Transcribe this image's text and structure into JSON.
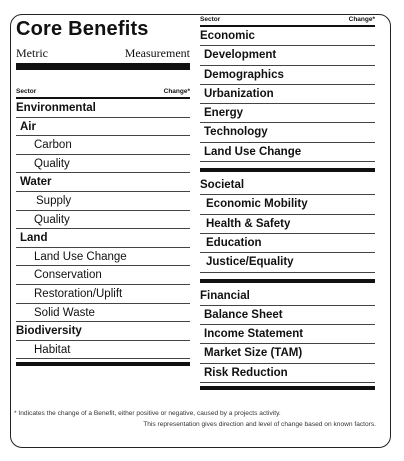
{
  "left": {
    "title": "Core Benefits",
    "metric_label": "Metric",
    "measurement_label": "Measurement",
    "header": {
      "sector": "Sector",
      "change": "Change*"
    },
    "rows": [
      {
        "label": "Environmental",
        "level": 0
      },
      {
        "label": "Air",
        "level": 1
      },
      {
        "label": "Carbon",
        "level": 2
      },
      {
        "label": "Quality",
        "level": 2
      },
      {
        "label": "Water",
        "level": 1
      },
      {
        "label": "Supply",
        "level": 3
      },
      {
        "label": "Quality",
        "level": 2
      },
      {
        "label": "Land",
        "level": 1
      },
      {
        "label": "Land Use Change",
        "level": 2
      },
      {
        "label": "Conservation",
        "level": 2
      },
      {
        "label": "Restoration/Uplift",
        "level": 2
      },
      {
        "label": "Solid Waste",
        "level": 2
      },
      {
        "label": "Biodiversity",
        "level": 0
      },
      {
        "label": "Habitat",
        "level": 2
      }
    ]
  },
  "right": {
    "header": {
      "sector": "Sector",
      "change": "Change*"
    },
    "economic": {
      "title": "Economic",
      "items": [
        "Development",
        "Demographics",
        "Urbanization",
        "Energy",
        "Technology",
        "Land Use Change"
      ]
    },
    "societal": {
      "title": "Societal",
      "items": [
        "Economic Mobility",
        "Health & Safety",
        "Education",
        "Justice/Equality"
      ]
    },
    "financial": {
      "title": "Financial",
      "items": [
        "Balance Sheet",
        "Income Statement",
        "Market Size (TAM)",
        "Risk Reduction"
      ]
    }
  },
  "footnote": {
    "line1": "* Indicates the change of a Benefit, either positive or negative, caused by a projects activity.",
    "line2": "This representation gives direction and level of change based on known factors."
  }
}
